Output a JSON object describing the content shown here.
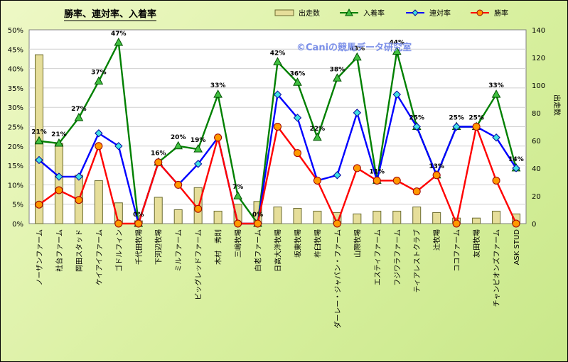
{
  "chart_data": {
    "type": "bar+line",
    "title": "勝率、連対率、入着率",
    "credit": "©Caniの競馬データ研究室",
    "y2label": "出走数",
    "ylim": [
      0,
      50
    ],
    "y2lim": [
      0,
      140
    ],
    "yticks": [
      "0%",
      "5%",
      "10%",
      "15%",
      "20%",
      "25%",
      "30%",
      "35%",
      "40%",
      "45%",
      "50%"
    ],
    "y2ticks": [
      "0",
      "20",
      "40",
      "60",
      "80",
      "100",
      "120",
      "140"
    ],
    "legend": [
      "出走数",
      "入着率",
      "連対率",
      "勝率"
    ],
    "colors": {
      "bar": "#e8e0a0",
      "nyuchaku": "#008000",
      "rentai": "#0000ff",
      "shoritsu": "#ff0000"
    },
    "categories": [
      "ノーザンファーム",
      "社台ファーム",
      "岡田スタッド",
      "ケイアイファーム",
      "ゴドルフィン",
      "千代田牧場",
      "下河辺牧場",
      "ミルファーム",
      "ビッグレッドファーム",
      "木村　秀則",
      "三嶋牧場",
      "白老ファーム",
      "日高大洋牧場",
      "坂東牧場",
      "杵臼牧場",
      "ダーレー・ジャパン・ファーム",
      "山際牧場",
      "エスティファーム",
      "フジワラファーム",
      "ティアレストクラブ",
      "辻牧場",
      "ココファーム",
      "友田牧場",
      "チャンピオンズファーム",
      "ASK STUD"
    ],
    "starts": [
      122,
      58,
      35,
      31,
      15,
      2,
      19,
      10,
      26,
      9,
      14,
      16,
      12,
      11,
      9,
      8,
      7,
      9,
      9,
      12,
      8,
      4,
      4,
      9,
      7
    ],
    "nyuchaku": [
      21.3,
      20.7,
      27.3,
      36.7,
      46.7,
      0,
      15.8,
      20.0,
      19.2,
      33.3,
      7.1,
      0,
      41.7,
      36.4,
      22.2,
      37.5,
      42.9,
      11.1,
      44.4,
      25.0,
      12.5,
      25.0,
      25.0,
      33.3,
      14.3
    ],
    "nyuchaku_labels": [
      "21%",
      "21%",
      "27%",
      "37%",
      "47%",
      "0%",
      "16%",
      "20%",
      "19%",
      "33%",
      "7%",
      "0%",
      "42%",
      "36%",
      "22%",
      "38%",
      "43%",
      "11%",
      "44%",
      "25%",
      "13%",
      "25%",
      "25%",
      "33%",
      "14%"
    ],
    "rentai": [
      16.4,
      12.1,
      12.1,
      23.3,
      20.0,
      0,
      15.8,
      10.0,
      15.4,
      22.2,
      0,
      0,
      33.3,
      27.3,
      11.1,
      12.5,
      28.6,
      11.1,
      33.3,
      25.0,
      12.5,
      25.0,
      25.0,
      22.2,
      14.3
    ],
    "shoritsu": [
      4.9,
      8.6,
      6.1,
      20.0,
      0,
      0,
      15.8,
      10.0,
      3.8,
      22.2,
      0,
      0,
      25.0,
      18.2,
      11.1,
      0,
      14.3,
      11.1,
      11.1,
      8.3,
      12.5,
      0,
      25.0,
      11.1,
      0
    ]
  }
}
